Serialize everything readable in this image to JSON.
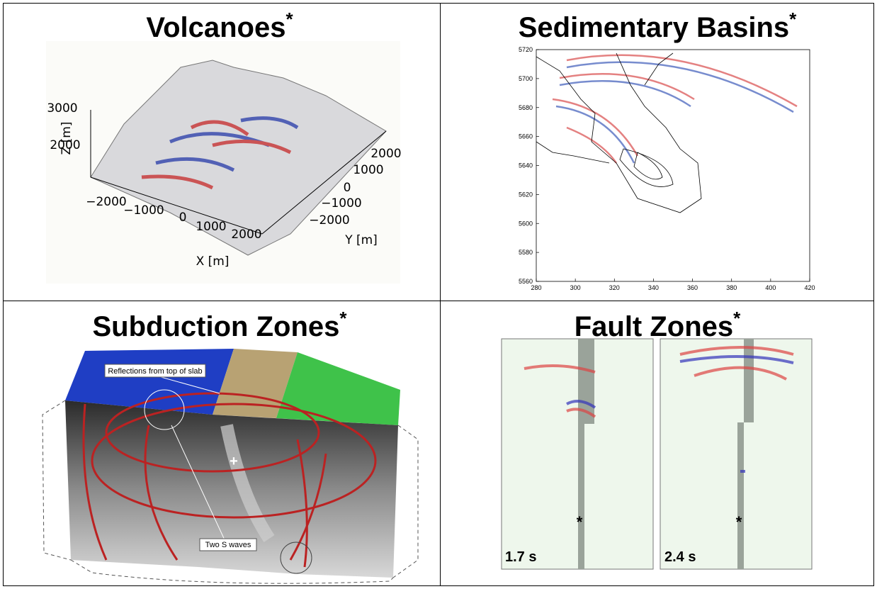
{
  "cells": [
    {
      "title": "Volcanoes",
      "mark": "*",
      "image": {
        "z_label": "Z [m]",
        "z_ticks": [
          "3000",
          "2000"
        ],
        "x_label": "X [m]",
        "x_ticks": [
          "−2000",
          "−1000",
          "0",
          "1000",
          "2000"
        ],
        "y_label": "Y [m]",
        "y_ticks": [
          "2000",
          "1000",
          "0",
          "−1000",
          "−2000"
        ]
      }
    },
    {
      "title": "Sedimentary Basins",
      "mark": "*",
      "image": {
        "y_ticks": [
          "5720",
          "5700",
          "5680",
          "5660",
          "5640",
          "5620",
          "5600",
          "5580",
          "5560"
        ],
        "x_ticks": [
          "280",
          "300",
          "320",
          "340",
          "360",
          "380",
          "400",
          "420"
        ]
      }
    },
    {
      "title": "Subduction Zones",
      "mark": "*",
      "image": {
        "annotations": [
          "Reflections from top of slab",
          "Two S waves"
        ],
        "source_marker": "+"
      }
    },
    {
      "title": "Fault Zones",
      "mark": "*",
      "image": {
        "panels": [
          {
            "time": "1.7 s",
            "source_marker": "*"
          },
          {
            "time": "2.4 s",
            "source_marker": "*"
          }
        ]
      }
    }
  ]
}
